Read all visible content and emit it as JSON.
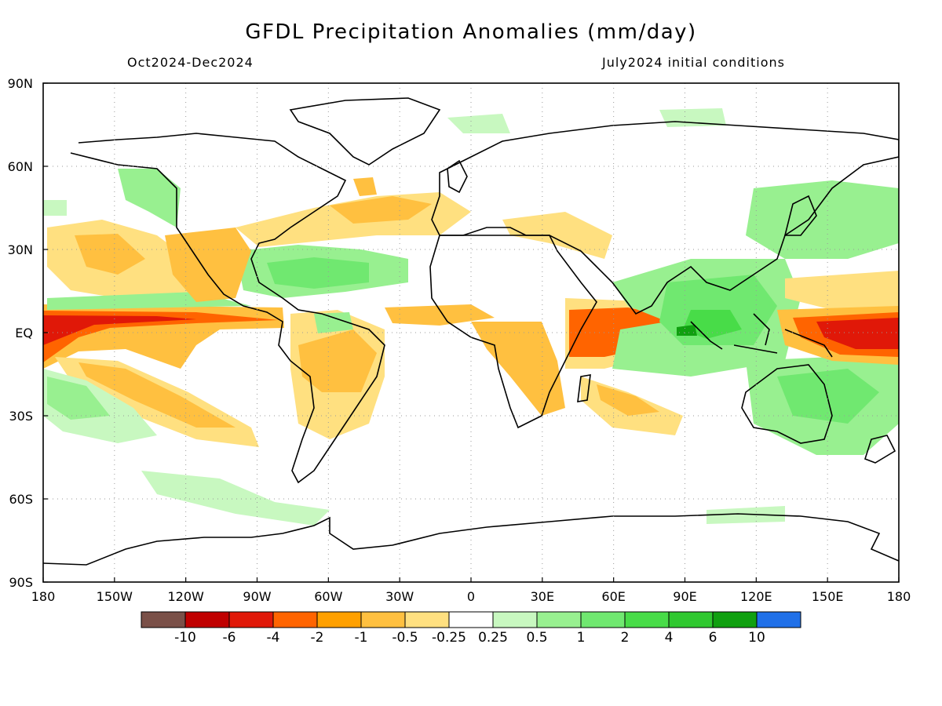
{
  "title": "GFDL Precipitation Anomalies (mm/day)",
  "period": "Oct2024-Dec2024",
  "init_conditions": "July2024 initial conditions",
  "lat_ticks": [
    "90N",
    "60N",
    "30N",
    "EQ",
    "30S",
    "60S",
    "90S"
  ],
  "lon_ticks": [
    "180",
    "150W",
    "120W",
    "90W",
    "60W",
    "30W",
    "0",
    "30E",
    "60E",
    "90E",
    "120E",
    "150E",
    "180"
  ],
  "colorbar": {
    "colors": [
      "#7a5048",
      "#c00000",
      "#e01808",
      "#ff6400",
      "#ffa000",
      "#ffc040",
      "#ffe080",
      "#ffffff",
      "#c8f8c0",
      "#98f090",
      "#70e870",
      "#48dc48",
      "#30c830",
      "#10a010",
      "#2070e8"
    ],
    "labels": [
      "-10",
      "-6",
      "-4",
      "-2",
      "-1",
      "-0.5",
      "-0.25",
      "0.25",
      "0.5",
      "1",
      "2",
      "4",
      "6",
      "10"
    ]
  }
}
